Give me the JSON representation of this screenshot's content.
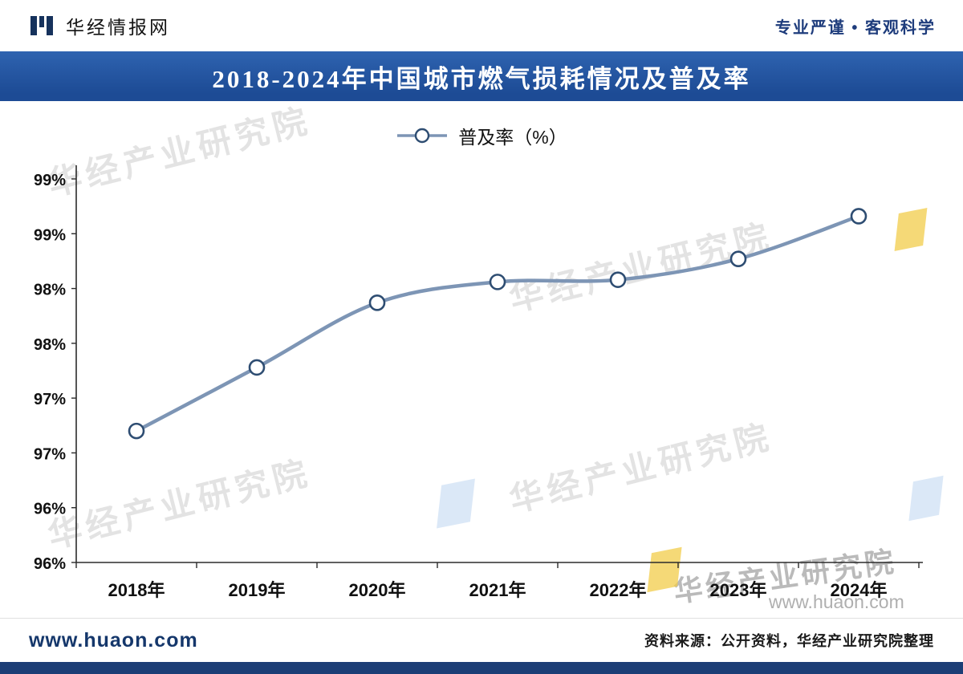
{
  "header": {
    "brand": "华经情报网",
    "tagline": "专业严谨 • 客观科学"
  },
  "banner": {
    "title": "2018-2024年中国城市燃气损耗情况及普及率"
  },
  "chart_data": {
    "type": "line",
    "title": "2018-2024年中国城市燃气损耗情况及普及率",
    "legend": [
      {
        "label": "普及率（%）"
      }
    ],
    "legend_position": "top-center",
    "categories": [
      "2018年",
      "2019年",
      "2020年",
      "2021年",
      "2022年",
      "2023年",
      "2024年"
    ],
    "series": [
      {
        "name": "普及率（%）",
        "values": [
          97.2,
          97.78,
          98.37,
          98.56,
          98.58,
          98.77,
          99.16
        ]
      }
    ],
    "ylim": [
      96,
      99.5
    ],
    "ytick_step": 0.5,
    "ytick_labels_top_to_bottom": [
      "99%",
      "99%",
      "98%",
      "98%",
      "97%",
      "97%",
      "96%",
      "96%"
    ],
    "grid": false,
    "line_color": "#7d95b5",
    "marker_fill": "#ffffff",
    "marker_stroke": "#2e4d72"
  },
  "watermark": {
    "text": "华经产业研究院",
    "url": "www.huaon.com"
  },
  "footer": {
    "site": "www.huaon.com",
    "source": "资料来源：公开资料，华经产业研究院整理"
  },
  "colors": {
    "banner_blue": "#1d4b95",
    "logo_navy": "#16325c",
    "bottom_bar_navy": "#1c3e76",
    "line_blue_gray": "#7d95b5"
  }
}
